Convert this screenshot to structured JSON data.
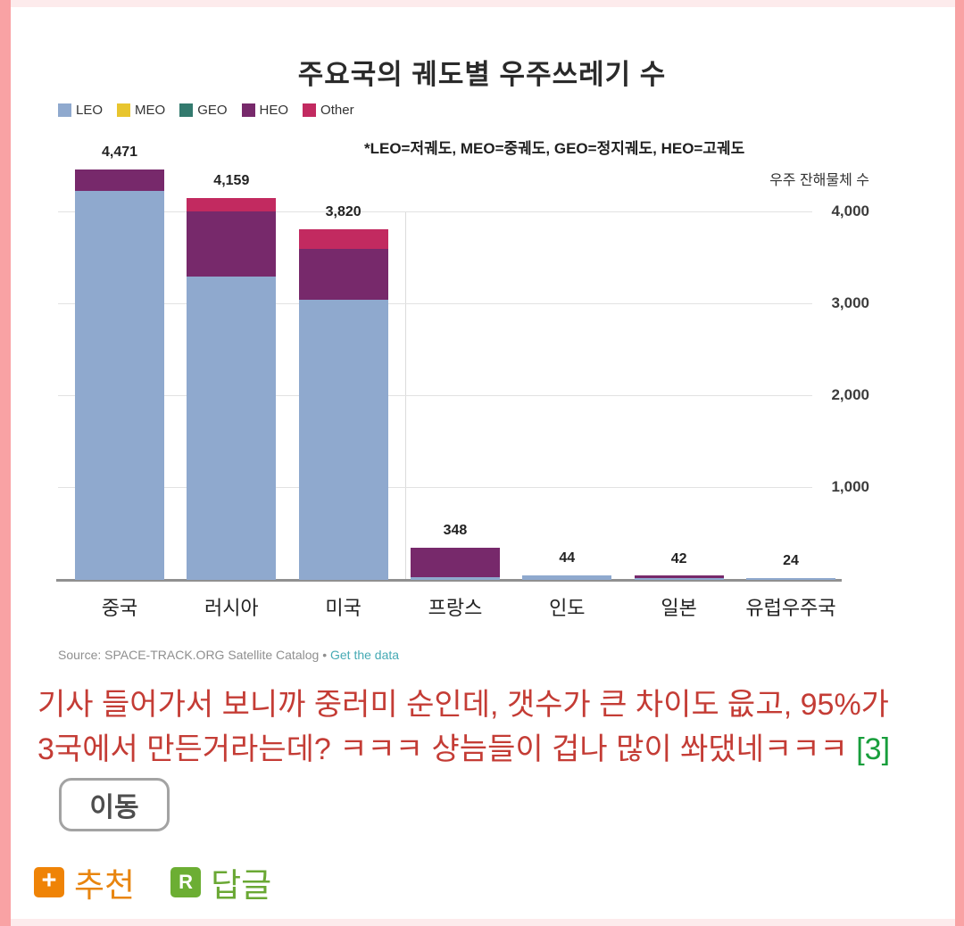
{
  "frame": {
    "border_color": "#f9a2a4",
    "pale_color": "#fdebec"
  },
  "chart": {
    "title": "주요국의 궤도별 우주쓰레기 수",
    "note": "*LEO=저궤도, MEO=중궤도, GEO=정지궤도, HEO=고궤도",
    "y_axis_title": "우주 잔해물체 수",
    "source_prefix": "Source: SPACE-TRACK.ORG Satellite Catalog",
    "source_separator": "•",
    "source_link": "Get the data"
  },
  "chart_data": {
    "type": "bar",
    "stacked": true,
    "title": "주요국의 궤도별 우주쓰레기 수",
    "categories": [
      "중국",
      "러시아",
      "미국",
      "프랑스",
      "인도",
      "일본",
      "유럽우주국"
    ],
    "totals": [
      4471,
      4159,
      3820,
      348,
      44,
      42,
      24
    ],
    "total_labels": [
      "4,471",
      "4,159",
      "3,820",
      "348",
      "44",
      "42",
      "24"
    ],
    "series": [
      {
        "name": "LEO",
        "color": "#8fa9ce",
        "values": [
          4230,
          3300,
          3050,
          30,
          44,
          14,
          24
        ]
      },
      {
        "name": "MEO",
        "color": "#e8c52e",
        "values": [
          0,
          0,
          0,
          0,
          0,
          0,
          0
        ]
      },
      {
        "name": "GEO",
        "color": "#337a6e",
        "values": [
          0,
          0,
          0,
          0,
          0,
          0,
          0
        ]
      },
      {
        "name": "HEO",
        "color": "#77296b",
        "values": [
          241,
          710,
          550,
          318,
          0,
          28,
          0
        ]
      },
      {
        "name": "Other",
        "color": "#c22a60",
        "values": [
          0,
          149,
          220,
          0,
          0,
          0,
          0
        ]
      }
    ],
    "ylim": [
      0,
      4650
    ],
    "yticks": [
      1000,
      2000,
      3000,
      4000
    ],
    "ytick_labels": [
      "1,000",
      "2,000",
      "3,000",
      "4,000"
    ],
    "legend_position": "top-left",
    "grid": "horizontal",
    "ylabel": "우주 잔해물체 수",
    "xlabel": ""
  },
  "comment": {
    "line1": "기사 들어가서 보니까 중러미 순인데, 갯수가 큰 차이도 읎고, 95%가",
    "line2": "3국에서 만든거라는데? ㅋㅋㅋ 샹늠들이 겁나 많이 쏴댔네ㅋㅋㅋ",
    "reply_count": "[3]"
  },
  "buttons": {
    "move_label": "이동"
  },
  "actions": {
    "recommend_label": "추천",
    "recommend_icon": "+",
    "recommend_icon_bg": "#ef8306",
    "recommend_label_color": "#e8850f",
    "reply_label": "답글",
    "reply_icon": "R",
    "reply_icon_bg": "#6cae33",
    "reply_label_color": "#6aa834"
  }
}
